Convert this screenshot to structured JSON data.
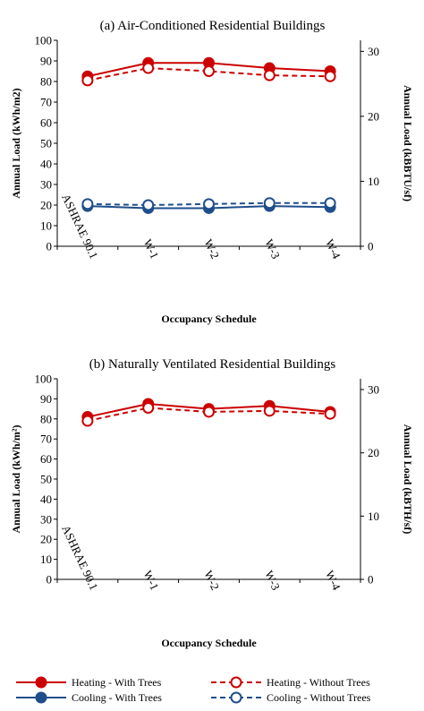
{
  "colors": {
    "heating": "#cc0000",
    "cooling": "#1f4e8c",
    "axis": "#000000"
  },
  "chart_data": [
    {
      "type": "line",
      "title": "(a) Air-Conditioned Residential Buildings",
      "xlabel": "Occupancy Schedule",
      "ylabel": "Annual Load (kWh/m2)",
      "y2label": "Annual Load (kBBTU/sf)",
      "ylim": [
        0,
        100
      ],
      "yticks": [
        "0",
        "10",
        "20",
        "30",
        "40",
        "50",
        "60",
        "70",
        "80",
        "90",
        "100"
      ],
      "y2lim": [
        0,
        31.7
      ],
      "y2ticks": [
        "0",
        "10",
        "20",
        "30"
      ],
      "categories": [
        "ASHRAE 90.1",
        "W-1",
        "W-2",
        "W-3",
        "W-4"
      ],
      "series": [
        {
          "name": "Heating - With Trees",
          "values": [
            82.5,
            89,
            89,
            86.5,
            85
          ],
          "color": "heating",
          "dash": false,
          "marker": "filled"
        },
        {
          "name": "Heating - Without Trees",
          "values": [
            80.5,
            86.5,
            85,
            83,
            82.5
          ],
          "color": "heating",
          "dash": true,
          "marker": "open"
        },
        {
          "name": "Cooling - With Trees",
          "values": [
            19.5,
            18.5,
            18.5,
            19.5,
            19
          ],
          "color": "cooling",
          "dash": false,
          "marker": "filled"
        },
        {
          "name": "Cooling - Without Trees",
          "values": [
            20.5,
            20,
            20.5,
            21,
            21
          ],
          "color": "cooling",
          "dash": true,
          "marker": "open"
        }
      ]
    },
    {
      "type": "line",
      "title": "(b) Naturally Ventilated Residential Buildings",
      "xlabel": "Occupancy Schedule",
      "ylabel": "Annual Load (kWh/m²)",
      "y2label": "Annual Load (kBTH/sf)",
      "ylim": [
        0,
        100
      ],
      "yticks": [
        "0",
        "10",
        "20",
        "30",
        "40",
        "50",
        "60",
        "70",
        "80",
        "90",
        "100"
      ],
      "y2lim": [
        0,
        31.7
      ],
      "y2ticks": [
        "0",
        "10",
        "20",
        "30"
      ],
      "categories": [
        "ASHRAE 90.1",
        "W-1",
        "W-2",
        "W-3",
        "W-4"
      ],
      "series": [
        {
          "name": "Heating - With Trees",
          "values": [
            81,
            87.5,
            85,
            86.5,
            83.5
          ],
          "color": "heating",
          "dash": false,
          "marker": "filled"
        },
        {
          "name": "Heating - Without Trees",
          "values": [
            79,
            85.5,
            83.5,
            84,
            82.5
          ],
          "color": "heating",
          "dash": true,
          "marker": "open"
        }
      ]
    }
  ],
  "legend": [
    {
      "label": "Heating - With Trees",
      "color": "heating",
      "dash": false,
      "marker": "filled"
    },
    {
      "label": "Heating - Without Trees",
      "color": "heating",
      "dash": true,
      "marker": "open"
    },
    {
      "label": "Cooling - With Trees",
      "color": "cooling",
      "dash": false,
      "marker": "filled"
    },
    {
      "label": "Cooling - Without Trees",
      "color": "cooling",
      "dash": true,
      "marker": "open"
    }
  ]
}
